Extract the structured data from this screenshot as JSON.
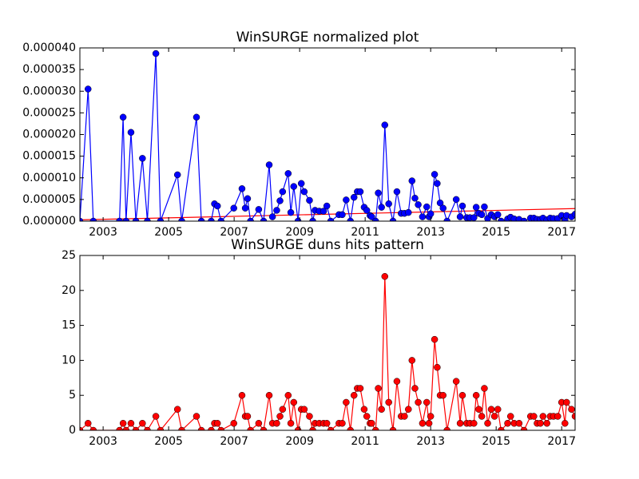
{
  "chart_data": [
    {
      "type": "line",
      "title": "WinSURGE normalized plot",
      "color": "#0000ff",
      "x": [
        2002.29,
        2002.54,
        2002.7,
        2003.5,
        2003.61,
        2003.7,
        2003.85,
        2004.0,
        2004.2,
        2004.35,
        2004.61,
        2004.75,
        2005.27,
        2005.4,
        2005.85,
        2006.0,
        2006.3,
        2006.4,
        2006.49,
        2006.6,
        2006.99,
        2007.24,
        2007.34,
        2007.41,
        2007.5,
        2007.75,
        2007.9,
        2008.07,
        2008.17,
        2008.3,
        2008.4,
        2008.48,
        2008.65,
        2008.73,
        2008.82,
        2008.95,
        2009.05,
        2009.14,
        2009.3,
        2009.4,
        2009.47,
        2009.6,
        2009.73,
        2009.83,
        2009.95,
        2010.2,
        2010.3,
        2010.42,
        2010.55,
        2010.66,
        2010.76,
        2010.85,
        2010.97,
        2011.05,
        2011.15,
        2011.2,
        2011.32,
        2011.4,
        2011.5,
        2011.6,
        2011.72,
        2011.85,
        2011.97,
        2012.1,
        2012.2,
        2012.32,
        2012.43,
        2012.52,
        2012.62,
        2012.75,
        2012.88,
        2012.95,
        2013.0,
        2013.12,
        2013.2,
        2013.29,
        2013.38,
        2013.5,
        2013.78,
        2013.9,
        2013.97,
        2014.1,
        2014.2,
        2014.32,
        2014.39,
        2014.47,
        2014.56,
        2014.64,
        2014.74,
        2014.85,
        2014.95,
        2015.05,
        2015.15,
        2015.35,
        2015.44,
        2015.55,
        2015.7,
        2015.85,
        2016.05,
        2016.15,
        2016.25,
        2016.35,
        2016.43,
        2016.55,
        2016.65,
        2016.75,
        2016.88,
        2017.0,
        2017.1,
        2017.15,
        2017.3,
        2017.41
      ],
      "values": [
        0,
        3.05e-05,
        0,
        0,
        2.4e-05,
        0,
        2.05e-05,
        0,
        1.45e-05,
        0,
        3.87e-05,
        0,
        1.07e-05,
        0,
        2.4e-05,
        0,
        0,
        4e-06,
        3.5e-06,
        0,
        3e-06,
        7.5e-06,
        3e-06,
        5.2e-06,
        0,
        2.7e-06,
        0,
        1.3e-05,
        1e-06,
        2.5e-06,
        4.7e-06,
        6.8e-06,
        1.1e-05,
        2e-06,
        8e-06,
        0,
        8.7e-06,
        6.8e-06,
        4.8e-06,
        0,
        2.5e-06,
        2.3e-06,
        2.3e-06,
        3.5e-06,
        0,
        1.5e-06,
        1.5e-06,
        4.9e-06,
        0,
        5.5e-06,
        6.8e-06,
        6.8e-06,
        3.2e-06,
        2.5e-06,
        1.3e-06,
        1e-06,
        0,
        6.5e-06,
        3.2e-06,
        2.22e-05,
        4e-06,
        0,
        6.8e-06,
        1.8e-06,
        1.8e-06,
        2e-06,
        9.3e-06,
        5.3e-06,
        3.8e-06,
        1e-06,
        3.3e-06,
        1e-06,
        1.7e-06,
        1.08e-05,
        8.7e-06,
        4.2e-06,
        3e-06,
        0,
        5e-06,
        1e-06,
        3.5e-06,
        8e-07,
        8e-07,
        8e-07,
        3.2e-06,
        1.8e-06,
        1.5e-06,
        3.3e-06,
        6e-07,
        1.5e-06,
        1e-06,
        1.5e-06,
        0,
        5e-07,
        9e-07,
        5e-07,
        4e-07,
        0,
        7e-07,
        7e-07,
        4e-07,
        4e-07,
        7e-07,
        3e-07,
        7e-07,
        6e-07,
        6e-07,
        1.3e-06,
        3e-07,
        1.3e-06,
        1e-06,
        1.6e-06
      ],
      "trend": {
        "color": "#ff0000",
        "x": [
          2002.29,
          2017.41
        ],
        "values": [
          3e-07,
          2.9e-06
        ]
      },
      "xlim": [
        2002.29,
        2017.41
      ],
      "xticks": [
        2003,
        2005,
        2007,
        2009,
        2011,
        2013,
        2015,
        2017
      ],
      "ylim": [
        0,
        4e-05
      ],
      "yticks": [
        {
          "value": 0,
          "label": "0.000000"
        },
        {
          "value": 5e-06,
          "label": "0.000005"
        },
        {
          "value": 1e-05,
          "label": "0.000010"
        },
        {
          "value": 1.5e-05,
          "label": "0.000015"
        },
        {
          "value": 2e-05,
          "label": "0.000020"
        },
        {
          "value": 2.5e-05,
          "label": "0.000025"
        },
        {
          "value": 3e-05,
          "label": "0.000030"
        },
        {
          "value": 3.5e-05,
          "label": "0.000035"
        },
        {
          "value": 4e-05,
          "label": "0.000040"
        }
      ]
    },
    {
      "type": "line",
      "title": "WinSURGE duns hits pattern",
      "color": "#ff0000",
      "x": [
        2002.29,
        2002.54,
        2002.7,
        2003.5,
        2003.61,
        2003.7,
        2003.85,
        2004.0,
        2004.2,
        2004.35,
        2004.61,
        2004.75,
        2005.27,
        2005.4,
        2005.85,
        2006.0,
        2006.3,
        2006.4,
        2006.49,
        2006.6,
        2006.99,
        2007.24,
        2007.34,
        2007.41,
        2007.5,
        2007.75,
        2007.9,
        2008.07,
        2008.17,
        2008.3,
        2008.4,
        2008.48,
        2008.65,
        2008.73,
        2008.82,
        2008.95,
        2009.05,
        2009.14,
        2009.3,
        2009.4,
        2009.47,
        2009.6,
        2009.73,
        2009.83,
        2009.95,
        2010.2,
        2010.3,
        2010.42,
        2010.55,
        2010.66,
        2010.76,
        2010.85,
        2010.97,
        2011.05,
        2011.15,
        2011.2,
        2011.32,
        2011.4,
        2011.5,
        2011.6,
        2011.72,
        2011.85,
        2011.97,
        2012.1,
        2012.2,
        2012.32,
        2012.43,
        2012.52,
        2012.62,
        2012.75,
        2012.88,
        2012.95,
        2013.0,
        2013.12,
        2013.2,
        2013.29,
        2013.38,
        2013.5,
        2013.78,
        2013.9,
        2013.97,
        2014.1,
        2014.2,
        2014.32,
        2014.39,
        2014.47,
        2014.56,
        2014.64,
        2014.74,
        2014.85,
        2014.95,
        2015.05,
        2015.15,
        2015.35,
        2015.44,
        2015.55,
        2015.7,
        2015.85,
        2016.05,
        2016.15,
        2016.25,
        2016.35,
        2016.43,
        2016.55,
        2016.65,
        2016.75,
        2016.88,
        2017.0,
        2017.1,
        2017.15,
        2017.3,
        2017.41
      ],
      "values": [
        0,
        1,
        0,
        0,
        1,
        0,
        1,
        0,
        1,
        0,
        2,
        0,
        3,
        0,
        2,
        0,
        0,
        1,
        1,
        0,
        1,
        5,
        2,
        2,
        0,
        1,
        0,
        5,
        1,
        1,
        2,
        3,
        5,
        1,
        4,
        0,
        3,
        3,
        2,
        0,
        1,
        1,
        1,
        1,
        0,
        1,
        1,
        4,
        0,
        5,
        6,
        6,
        3,
        2,
        1,
        1,
        0,
        6,
        3,
        22,
        4,
        0,
        7,
        2,
        2,
        3,
        10,
        6,
        4,
        1,
        4,
        1,
        2,
        13,
        9,
        5,
        5,
        0,
        7,
        1,
        5,
        1,
        1,
        1,
        5,
        3,
        2,
        6,
        1,
        3,
        2,
        3,
        0,
        1,
        2,
        1,
        1,
        0,
        2,
        2,
        1,
        1,
        2,
        1,
        2,
        2,
        2,
        4,
        1,
        4,
        3,
        2
      ],
      "xlim": [
        2002.29,
        2017.41
      ],
      "xticks": [
        2003,
        2005,
        2007,
        2009,
        2011,
        2013,
        2015,
        2017
      ],
      "ylim": [
        0,
        25
      ],
      "yticks": [
        0,
        5,
        10,
        15,
        20,
        25
      ]
    }
  ]
}
